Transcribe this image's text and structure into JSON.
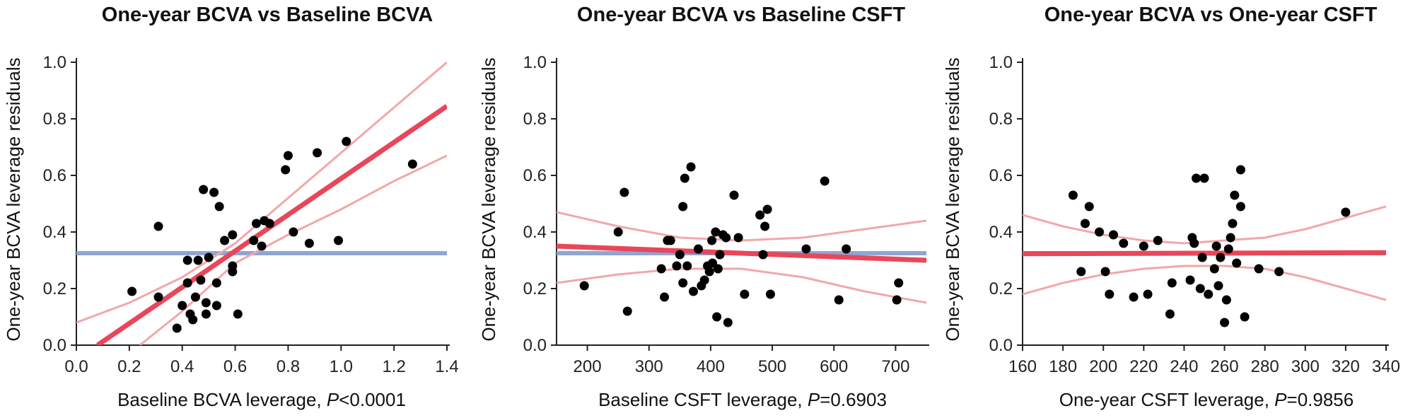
{
  "chart_data": [
    {
      "type": "scatter",
      "title": "One-year BCVA vs Baseline BCVA",
      "xlabel": "Baseline BCVA leverage, ",
      "p_label": "P",
      "p_text": "<0.0001",
      "ylabel": "One-year BCVA leverage residuals",
      "xlim": [
        0.0,
        1.4
      ],
      "ylim": [
        0.0,
        1.0
      ],
      "x_ticks": [
        "0.0",
        "0.2",
        "0.4",
        "0.6",
        "0.8",
        "1.0",
        "1.2",
        "1.4"
      ],
      "y_ticks": [
        "0.0",
        "0.2",
        "0.4",
        "0.6",
        "0.8",
        "1.0"
      ],
      "mean_line": 0.325,
      "fit": {
        "x": [
          0.08,
          1.4
        ],
        "y": [
          0.0,
          0.845
        ]
      },
      "ci_upper": {
        "x": [
          0.0,
          0.2,
          0.4,
          0.6,
          0.8,
          1.0,
          1.2,
          1.4
        ],
        "y": [
          0.08,
          0.15,
          0.24,
          0.36,
          0.52,
          0.68,
          0.84,
          1.0
        ]
      },
      "ci_lower": {
        "x": [
          0.24,
          0.4,
          0.6,
          0.8,
          1.0,
          1.2,
          1.4
        ],
        "y": [
          0.0,
          0.12,
          0.29,
          0.39,
          0.48,
          0.58,
          0.67
        ]
      },
      "points": [
        [
          0.21,
          0.19
        ],
        [
          0.31,
          0.17
        ],
        [
          0.31,
          0.42
        ],
        [
          0.38,
          0.06
        ],
        [
          0.4,
          0.14
        ],
        [
          0.42,
          0.22
        ],
        [
          0.43,
          0.11
        ],
        [
          0.42,
          0.3
        ],
        [
          0.44,
          0.09
        ],
        [
          0.45,
          0.17
        ],
        [
          0.46,
          0.3
        ],
        [
          0.47,
          0.23
        ],
        [
          0.48,
          0.55
        ],
        [
          0.49,
          0.15
        ],
        [
          0.49,
          0.11
        ],
        [
          0.5,
          0.31
        ],
        [
          0.52,
          0.54
        ],
        [
          0.53,
          0.14
        ],
        [
          0.54,
          0.49
        ],
        [
          0.53,
          0.22
        ],
        [
          0.56,
          0.37
        ],
        [
          0.59,
          0.39
        ],
        [
          0.59,
          0.26
        ],
        [
          0.59,
          0.28
        ],
        [
          0.61,
          0.11
        ],
        [
          0.67,
          0.37
        ],
        [
          0.68,
          0.43
        ],
        [
          0.7,
          0.35
        ],
        [
          0.71,
          0.44
        ],
        [
          0.73,
          0.43
        ],
        [
          0.79,
          0.62
        ],
        [
          0.8,
          0.67
        ],
        [
          0.82,
          0.4
        ],
        [
          0.88,
          0.36
        ],
        [
          0.91,
          0.68
        ],
        [
          0.99,
          0.37
        ],
        [
          1.02,
          0.72
        ],
        [
          1.27,
          0.64
        ]
      ]
    },
    {
      "type": "scatter",
      "title": "One-year BCVA vs Baseline CSFT",
      "xlabel": "Baseline CSFT leverage, ",
      "p_label": "P",
      "p_text": "=0.6903",
      "ylabel": "One-year BCVA leverage residuals",
      "xlim": [
        150,
        750
      ],
      "ylim": [
        0.0,
        1.0
      ],
      "x_ticks": [
        "200",
        "300",
        "400",
        "500",
        "600",
        "700"
      ],
      "y_ticks": [
        "0.0",
        "0.2",
        "0.4",
        "0.6",
        "0.8",
        "1.0"
      ],
      "mean_line": 0.325,
      "fit": {
        "x": [
          150,
          750
        ],
        "y": [
          0.35,
          0.3
        ]
      },
      "ci_upper": {
        "x": [
          150,
          250,
          350,
          450,
          550,
          650,
          750
        ],
        "y": [
          0.47,
          0.42,
          0.38,
          0.37,
          0.38,
          0.41,
          0.44
        ]
      },
      "ci_lower": {
        "x": [
          150,
          250,
          350,
          450,
          550,
          650,
          750
        ],
        "y": [
          0.22,
          0.25,
          0.27,
          0.27,
          0.24,
          0.19,
          0.15
        ]
      },
      "points": [
        [
          195,
          0.21
        ],
        [
          250,
          0.4
        ],
        [
          260,
          0.54
        ],
        [
          265,
          0.12
        ],
        [
          320,
          0.27
        ],
        [
          325,
          0.17
        ],
        [
          330,
          0.37
        ],
        [
          335,
          0.37
        ],
        [
          345,
          0.28
        ],
        [
          350,
          0.32
        ],
        [
          355,
          0.49
        ],
        [
          355,
          0.22
        ],
        [
          358,
          0.59
        ],
        [
          362,
          0.28
        ],
        [
          368,
          0.63
        ],
        [
          372,
          0.19
        ],
        [
          380,
          0.34
        ],
        [
          385,
          0.21
        ],
        [
          390,
          0.23
        ],
        [
          395,
          0.28
        ],
        [
          398,
          0.26
        ],
        [
          402,
          0.37
        ],
        [
          403,
          0.29
        ],
        [
          408,
          0.4
        ],
        [
          410,
          0.1
        ],
        [
          412,
          0.27
        ],
        [
          415,
          0.32
        ],
        [
          420,
          0.39
        ],
        [
          425,
          0.38
        ],
        [
          428,
          0.08
        ],
        [
          438,
          0.53
        ],
        [
          445,
          0.38
        ],
        [
          455,
          0.18
        ],
        [
          480,
          0.46
        ],
        [
          485,
          0.32
        ],
        [
          488,
          0.42
        ],
        [
          492,
          0.48
        ],
        [
          497,
          0.18
        ],
        [
          555,
          0.34
        ],
        [
          585,
          0.58
        ],
        [
          608,
          0.16
        ],
        [
          620,
          0.34
        ],
        [
          702,
          0.16
        ],
        [
          705,
          0.22
        ]
      ]
    },
    {
      "type": "scatter",
      "title": "One-year BCVA vs  One-year CSFT",
      "xlabel": "One-year CSFT leverage, ",
      "p_label": "P",
      "p_text": "=0.9856",
      "ylabel": "One-year BCVA leverage residuals",
      "xlim": [
        160,
        340
      ],
      "ylim": [
        0.0,
        1.0
      ],
      "x_ticks": [
        "160",
        "180",
        "200",
        "220",
        "240",
        "260",
        "280",
        "300",
        "320",
        "340"
      ],
      "y_ticks": [
        "0.0",
        "0.2",
        "0.4",
        "0.6",
        "0.8",
        "1.0"
      ],
      "mean_line": 0.325,
      "fit": {
        "x": [
          160,
          340
        ],
        "y": [
          0.323,
          0.327
        ]
      },
      "ci_upper": {
        "x": [
          160,
          180,
          200,
          220,
          240,
          260,
          280,
          300,
          320,
          340
        ],
        "y": [
          0.46,
          0.42,
          0.39,
          0.37,
          0.36,
          0.37,
          0.38,
          0.41,
          0.45,
          0.49
        ]
      },
      "ci_lower": {
        "x": [
          160,
          180,
          200,
          220,
          240,
          260,
          280,
          300,
          320,
          340
        ],
        "y": [
          0.18,
          0.22,
          0.25,
          0.27,
          0.28,
          0.28,
          0.27,
          0.24,
          0.2,
          0.16
        ]
      },
      "points": [
        [
          185,
          0.53
        ],
        [
          189,
          0.26
        ],
        [
          191,
          0.43
        ],
        [
          193,
          0.49
        ],
        [
          198,
          0.4
        ],
        [
          201,
          0.26
        ],
        [
          203,
          0.18
        ],
        [
          205,
          0.39
        ],
        [
          210,
          0.36
        ],
        [
          215,
          0.17
        ],
        [
          220,
          0.35
        ],
        [
          222,
          0.18
        ],
        [
          227,
          0.37
        ],
        [
          233,
          0.11
        ],
        [
          234,
          0.22
        ],
        [
          243,
          0.23
        ],
        [
          244,
          0.38
        ],
        [
          245,
          0.36
        ],
        [
          246,
          0.59
        ],
        [
          248,
          0.2
        ],
        [
          249,
          0.31
        ],
        [
          250,
          0.59
        ],
        [
          252,
          0.18
        ],
        [
          255,
          0.27
        ],
        [
          256,
          0.35
        ],
        [
          257,
          0.21
        ],
        [
          258,
          0.31
        ],
        [
          260,
          0.08
        ],
        [
          261,
          0.16
        ],
        [
          262,
          0.34
        ],
        [
          263,
          0.38
        ],
        [
          264,
          0.43
        ],
        [
          265,
          0.53
        ],
        [
          266,
          0.29
        ],
        [
          268,
          0.62
        ],
        [
          268,
          0.49
        ],
        [
          270,
          0.1
        ],
        [
          277,
          0.27
        ],
        [
          287,
          0.26
        ],
        [
          320,
          0.47
        ]
      ]
    }
  ],
  "colors": {
    "fit_line": "#e8475a",
    "ci_line": "#f3a7a9",
    "mean_line": "#8fa6d4",
    "points": "#000000",
    "axis": "#222222"
  }
}
